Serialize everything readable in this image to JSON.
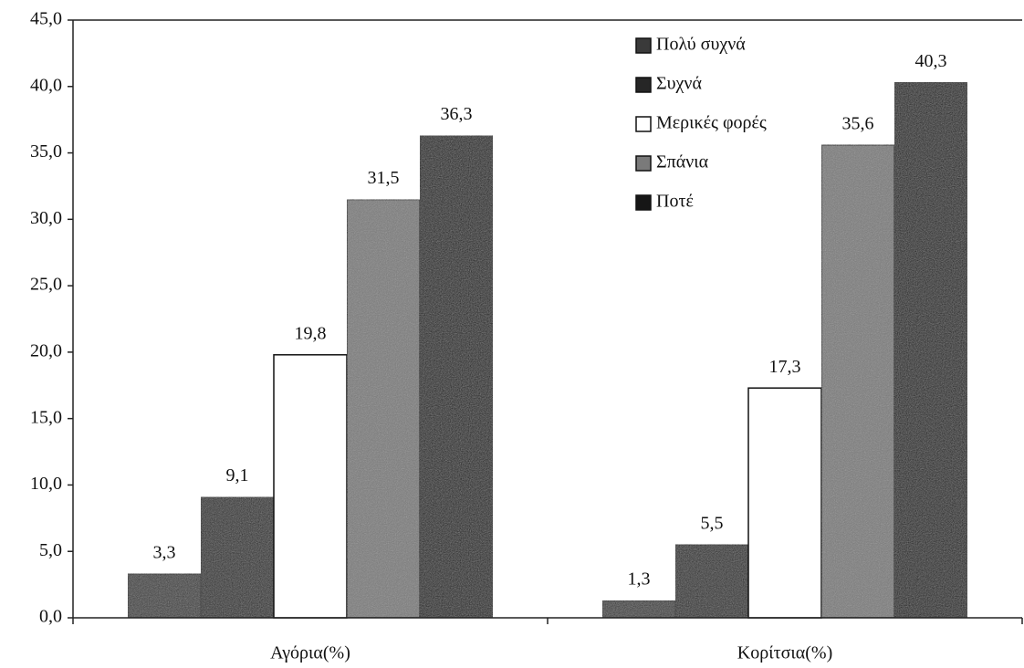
{
  "chart_data": {
    "type": "bar",
    "categories": [
      "Αγόρια(%)",
      "Κορίτσια(%)"
    ],
    "series": [
      {
        "name": "Πολύ συχνά",
        "color": "#3a3a3a",
        "values": [
          3.3,
          1.3
        ],
        "value_labels": [
          "3,3",
          "1,3"
        ]
      },
      {
        "name": "Συχνά",
        "color": "#262626",
        "values": [
          9.1,
          5.5
        ],
        "value_labels": [
          "9,1",
          "5,5"
        ]
      },
      {
        "name": "Μερικές φορές",
        "color": "#ffffff",
        "values": [
          19.8,
          17.3
        ],
        "value_labels": [
          "19,8",
          "17,3"
        ]
      },
      {
        "name": "Σπάνια",
        "color": "#7a7a7a",
        "values": [
          31.5,
          35.6
        ],
        "value_labels": [
          "31,5",
          "35,6"
        ]
      },
      {
        "name": "Ποτέ",
        "color": "#161616",
        "values": [
          36.3,
          40.3
        ],
        "value_labels": [
          "36,3",
          "40,3"
        ]
      }
    ],
    "ylim": [
      0,
      45
    ],
    "yticks": [
      {
        "value": 0,
        "label": "0,0"
      },
      {
        "value": 5,
        "label": "5,0"
      },
      {
        "value": 10,
        "label": "10,0"
      },
      {
        "value": 15,
        "label": "15,0"
      },
      {
        "value": 20,
        "label": "20,0"
      },
      {
        "value": 25,
        "label": "25,0"
      },
      {
        "value": 30,
        "label": "30,0"
      },
      {
        "value": 35,
        "label": "35,0"
      },
      {
        "value": 40,
        "label": "40,0"
      },
      {
        "value": 45,
        "label": "45,0"
      }
    ],
    "legend": "top-right"
  }
}
